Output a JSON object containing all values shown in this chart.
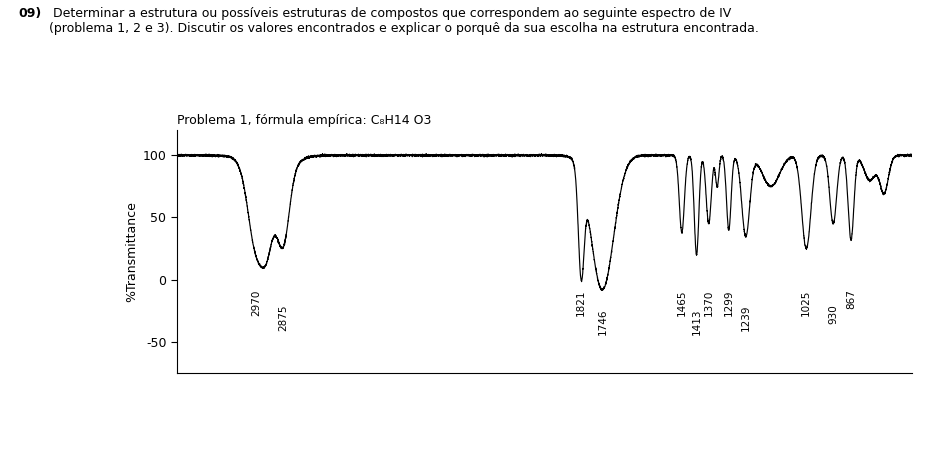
{
  "title_header_bold": "09)",
  "title_header_rest": " Determinar a estrutura ou possíveis estruturas de compostos que correspondem ao seguinte espectro de IV\n(problema 1, 2 e 3). Discutir os valores encontrados e explicar o porquê da sua escolha na estrutura encontrada.",
  "subtitle": "Problema 1, fórmula empírica: C₈H14 O3",
  "ylabel": "%Transmittance",
  "yticks": [
    100,
    50,
    0,
    -50
  ],
  "ylim": [
    -75,
    120
  ],
  "xlim_left": 3250,
  "xlim_right": 650,
  "background_color": "#ffffff",
  "line_color": "#000000",
  "text_color": "#000000",
  "peak_annotations": [
    {
      "wn": 2970,
      "label": "2970",
      "stagger": 0
    },
    {
      "wn": 2875,
      "label": "2875",
      "stagger": -12
    },
    {
      "wn": 1821,
      "label": "1821",
      "stagger": 0
    },
    {
      "wn": 1746,
      "label": "1746",
      "stagger": -15
    },
    {
      "wn": 1465,
      "label": "1465",
      "stagger": 0
    },
    {
      "wn": 1413,
      "label": "1413",
      "stagger": -15
    },
    {
      "wn": 1370,
      "label": "1370",
      "stagger": 0
    },
    {
      "wn": 1299,
      "label": "1299",
      "stagger": 0
    },
    {
      "wn": 1239,
      "label": "1239",
      "stagger": -12
    },
    {
      "wn": 1025,
      "label": "1025",
      "stagger": 0
    },
    {
      "wn": 930,
      "label": "930",
      "stagger": -12
    },
    {
      "wn": 867,
      "label": "867",
      "stagger": 0
    }
  ]
}
